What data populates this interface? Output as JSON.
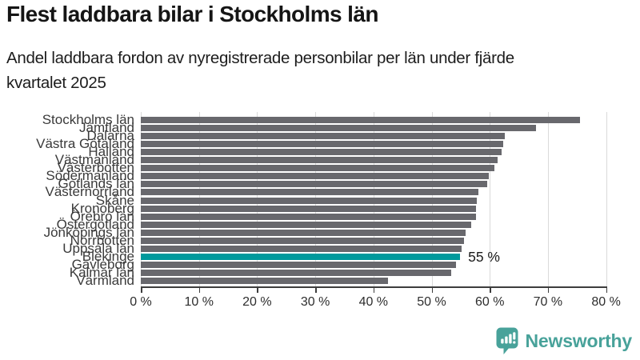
{
  "header": {
    "title": "Flest laddbara bilar i Stockholms län",
    "subtitle_lines": [
      "Andel laddbara fordon av nyregistrerade personbilar per län under fjärde",
      "kvartalet 2025"
    ]
  },
  "chart_data": {
    "type": "bar",
    "orientation": "horizontal",
    "title": "Flest laddbara bilar i Stockholms län",
    "subtitle": "Andel laddbara fordon av nyregistrerade personbilar per län under fjärde kvartalet 2025",
    "unit": "%",
    "xlim": [
      0,
      80
    ],
    "x_tick_labels": [
      "0 %",
      "10 %",
      "20 %",
      "30 %",
      "40 %",
      "50 %",
      "60 %",
      "70 %",
      "80 %"
    ],
    "grid": true,
    "categories": [
      "Stockholms län",
      "Jämtland",
      "Dalarna",
      "Västra Götaland",
      "Halland",
      "Västmanland",
      "Västerbotten",
      "Södermanland",
      "Gotlands län",
      "Västernorrland",
      "Skåne",
      "Kronoberg",
      "Örebro län",
      "Östergötland",
      "Jönköpings län",
      "Norrbotten",
      "Uppsala län",
      "Blekinge",
      "Gävleborg",
      "Kalmar län",
      "Värmland"
    ],
    "values": [
      75.5,
      68.0,
      62.6,
      62.3,
      62.0,
      61.4,
      60.8,
      59.8,
      59.5,
      58.1,
      57.8,
      57.7,
      57.6,
      56.8,
      55.8,
      55.6,
      55.2,
      54.9,
      54.2,
      53.4,
      42.5
    ],
    "highlight": {
      "index": 17,
      "category": "Blekinge",
      "label": "55 %"
    },
    "colors": {
      "bar": "#68686d",
      "highlight": "#00999c",
      "gridline": "#dadada",
      "axis": "#3d3d3d"
    }
  },
  "footer": {
    "brand": "Newsworthy",
    "brand_color": "#48a29a"
  }
}
